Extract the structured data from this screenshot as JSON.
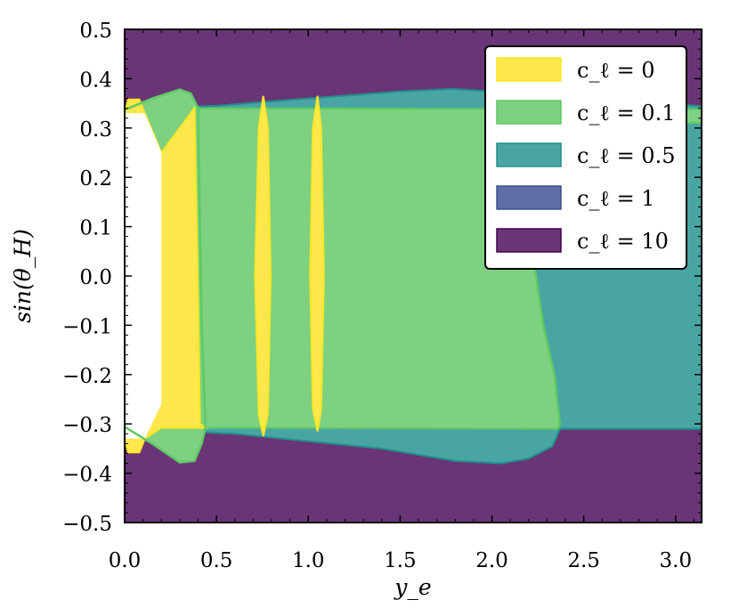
{
  "chart_data": {
    "type": "area",
    "title": "",
    "xlabel": "y_e",
    "ylabel": "sin(θ_H)",
    "xlim": [
      0.0,
      3.14159
    ],
    "ylim": [
      -0.5,
      0.5
    ],
    "x_ticks": [
      "0.0",
      "0.5",
      "1.0",
      "1.5",
      "2.0",
      "2.5",
      "3.0"
    ],
    "x_tick_values": [
      0.0,
      0.5,
      1.0,
      1.5,
      2.0,
      2.5,
      3.0
    ],
    "y_ticks": [
      "0.5",
      "0.4",
      "0.3",
      "0.2",
      "0.1",
      "0.0",
      "−0.1",
      "−0.2",
      "−0.3",
      "−0.4",
      "−0.5"
    ],
    "y_tick_values": [
      0.5,
      0.4,
      0.3,
      0.2,
      0.1,
      0.0,
      -0.1,
      -0.2,
      -0.3,
      -0.4,
      -0.5
    ],
    "grid": false,
    "legend_position": "top-right",
    "series": [
      {
        "name": "c_ℓ = 10",
        "fill": "#6a3577",
        "edge": "#440154",
        "regions": [
          [
            [
              0.0,
              0.5
            ],
            [
              3.14159,
              0.5
            ],
            [
              3.14159,
              -0.5
            ],
            [
              0.0,
              -0.5
            ]
          ]
        ]
      },
      {
        "name": "c_ℓ = 1",
        "fill": "#5f6ea6",
        "edge": "#3b528b",
        "regions": [
          [
            [
              0.0,
              0.341
            ],
            [
              3.14159,
              0.341
            ],
            [
              3.14159,
              -0.31
            ],
            [
              0.0,
              -0.31
            ]
          ]
        ]
      },
      {
        "name": "c_ℓ = 0.5",
        "fill": "#49a5a3",
        "edge": "#21918c",
        "regions": [
          [
            [
              0.0,
              0.337
            ],
            [
              0.15,
              0.34
            ],
            [
              0.5,
              0.345
            ],
            [
              1.0,
              0.36
            ],
            [
              1.5,
              0.374
            ],
            [
              1.78,
              0.379
            ],
            [
              2.0,
              0.374
            ],
            [
              2.5,
              0.36
            ],
            [
              3.0,
              0.348
            ],
            [
              3.14159,
              0.344
            ],
            [
              3.14159,
              -0.31
            ],
            [
              2.37,
              -0.31
            ],
            [
              2.33,
              -0.345
            ],
            [
              2.2,
              -0.37
            ],
            [
              2.05,
              -0.38
            ],
            [
              1.8,
              -0.375
            ],
            [
              1.4,
              -0.35
            ],
            [
              1.0,
              -0.335
            ],
            [
              0.6,
              -0.32
            ],
            [
              0.2,
              -0.312
            ],
            [
              0.0,
              -0.308
            ]
          ]
        ]
      },
      {
        "name": "c_ℓ = 0.1",
        "fill": "#7dd181",
        "edge": "#5ec962",
        "regions": [
          [
            [
              0.0,
              0.337
            ],
            [
              0.15,
              0.36
            ],
            [
              0.3,
              0.378
            ],
            [
              0.36,
              0.37
            ],
            [
              0.4,
              0.34
            ],
            [
              3.14159,
              0.338
            ],
            [
              3.14159,
              0.31
            ],
            [
              2.25,
              0.31
            ],
            [
              2.22,
              0.05
            ],
            [
              2.28,
              -0.1
            ],
            [
              2.34,
              -0.2
            ],
            [
              2.37,
              -0.3
            ],
            [
              2.36,
              -0.31
            ],
            [
              0.44,
              -0.308
            ],
            [
              0.42,
              -0.34
            ],
            [
              0.38,
              -0.375
            ],
            [
              0.3,
              -0.378
            ],
            [
              0.15,
              -0.34
            ],
            [
              0.0,
              -0.306
            ]
          ]
        ],
        "lines": [
          [
            [
              0.0,
              0.337
            ],
            [
              0.15,
              0.36
            ],
            [
              0.3,
              0.378
            ],
            [
              0.36,
              0.37
            ],
            [
              0.4,
              0.34
            ],
            [
              0.41,
              0.1
            ],
            [
              0.42,
              -0.1
            ],
            [
              0.44,
              -0.308
            ],
            [
              0.42,
              -0.34
            ],
            [
              0.38,
              -0.375
            ],
            [
              0.3,
              -0.378
            ],
            [
              0.15,
              -0.34
            ],
            [
              0.0,
              -0.306
            ]
          ],
          [
            [
              2.25,
              0.338
            ],
            [
              2.22,
              0.05
            ],
            [
              2.28,
              -0.1
            ],
            [
              2.34,
              -0.2
            ],
            [
              2.37,
              -0.3
            ],
            [
              2.36,
              -0.31
            ]
          ]
        ]
      },
      {
        "name": "c_ℓ = 0",
        "fill": "#fde74c",
        "edge": "#fde725",
        "regions": [
          [
            [
              0.0,
              0.33
            ],
            [
              0.02,
              0.358
            ],
            [
              0.08,
              0.358
            ],
            [
              0.11,
              0.33
            ],
            [
              0.2,
              0.25
            ],
            [
              0.38,
              0.34
            ],
            [
              0.4,
              -0.05
            ],
            [
              0.41,
              -0.3
            ],
            [
              0.44,
              -0.308
            ],
            [
              0.2,
              -0.308
            ],
            [
              0.11,
              -0.33
            ],
            [
              0.08,
              -0.358
            ],
            [
              0.02,
              -0.358
            ],
            [
              0.0,
              -0.33
            ]
          ],
          [
            [
              0.71,
              0.0
            ],
            [
              0.73,
              0.3
            ],
            [
              0.755,
              0.365
            ],
            [
              0.78,
              0.3
            ],
            [
              0.795,
              0.0
            ],
            [
              0.78,
              -0.28
            ],
            [
              0.755,
              -0.325
            ],
            [
              0.73,
              -0.28
            ]
          ],
          [
            [
              1.01,
              0.0
            ],
            [
              1.025,
              0.3
            ],
            [
              1.05,
              0.365
            ],
            [
              1.07,
              0.3
            ],
            [
              1.085,
              0.0
            ],
            [
              1.07,
              -0.27
            ],
            [
              1.05,
              -0.315
            ],
            [
              1.025,
              -0.27
            ]
          ]
        ]
      }
    ],
    "white_region": [
      [
        0.0,
        0.33
      ],
      [
        0.11,
        0.33
      ],
      [
        0.2,
        0.25
      ],
      [
        0.2,
        -0.26
      ],
      [
        0.11,
        -0.33
      ],
      [
        0.0,
        -0.33
      ]
    ]
  }
}
